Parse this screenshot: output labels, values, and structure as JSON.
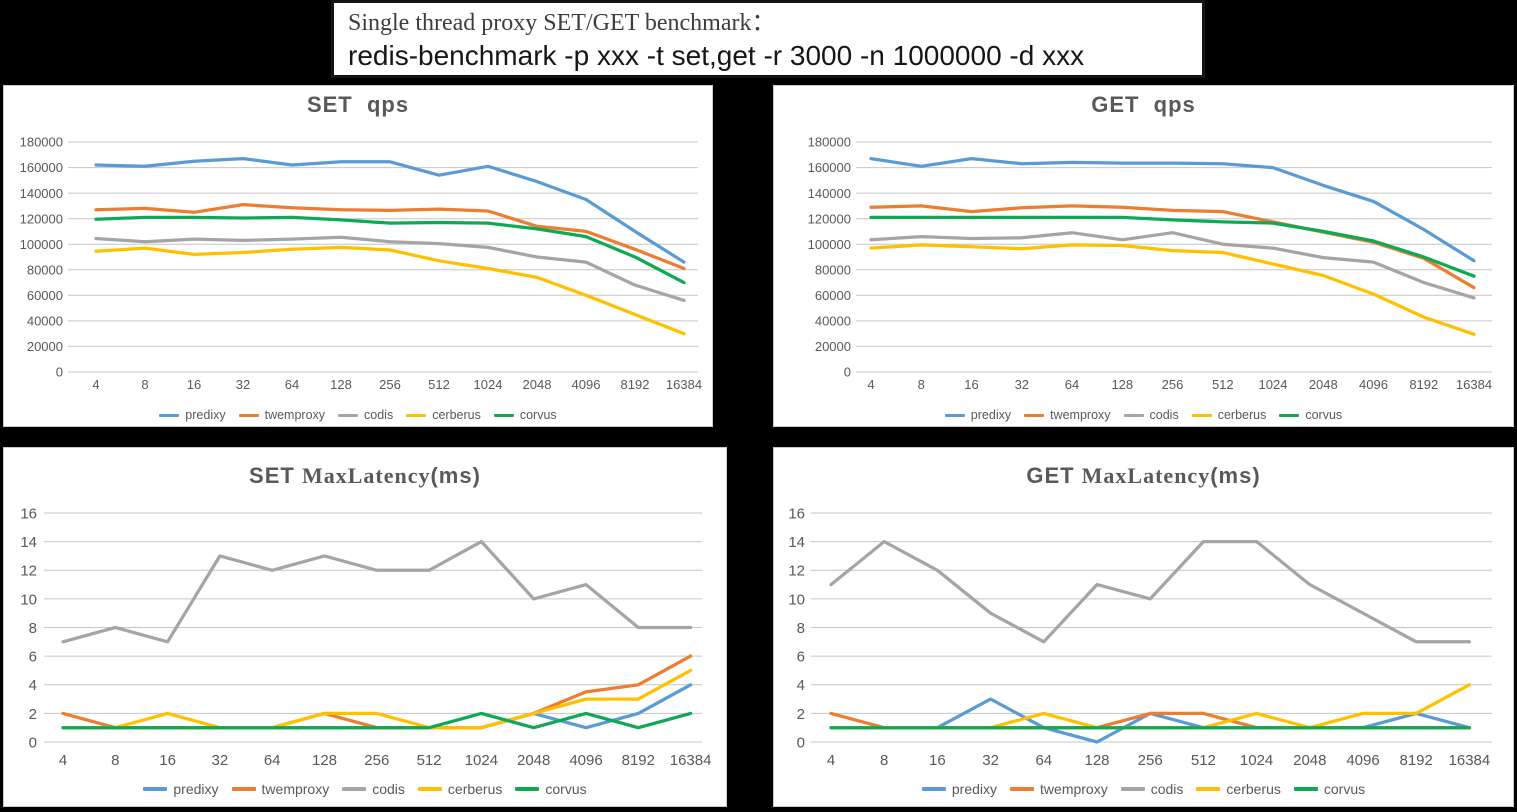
{
  "header": {
    "line1": "Single thread proxy SET/GET benchmark：",
    "line2": "redis-benchmark -p xxx -t set,get -r 3000 -n 1000000 -d xxx"
  },
  "legend": [
    "predixy",
    "twemproxy",
    "codis",
    "cerberus",
    "corvus"
  ],
  "colors": {
    "predixy": "#5B9BD5",
    "twemproxy": "#ED7D31",
    "codis": "#A5A5A5",
    "cerberus": "#FFC000",
    "corvus": "#0FA956",
    "grid": "#C6C6C6",
    "tick_text": "#595959",
    "title_text": "#595959",
    "panel_bg": "#FFFFFF",
    "page_bg": "#000000"
  },
  "chart_data": [
    {
      "id": "set-qps",
      "type": "line",
      "title": "SET  qps",
      "title_parts": [
        {
          "text": "SET  qps",
          "font": "sans"
        }
      ],
      "xlabel": "",
      "ylabel": "",
      "ylim": [
        0,
        180000
      ],
      "ytick_step": 20000,
      "grid": "horizontal",
      "legend_position": "bottom",
      "categories": [
        "4",
        "8",
        "16",
        "32",
        "64",
        "128",
        "256",
        "512",
        "1024",
        "2048",
        "4096",
        "8192",
        "16384"
      ],
      "series": [
        {
          "name": "predixy",
          "values": [
            162000,
            161000,
            165000,
            167000,
            162000,
            164500,
            164500,
            154000,
            161000,
            149000,
            135000,
            110000,
            86000
          ]
        },
        {
          "name": "twemproxy",
          "values": [
            127000,
            128000,
            125000,
            131000,
            128500,
            127000,
            126500,
            127500,
            126000,
            114000,
            110000,
            96000,
            81000
          ]
        },
        {
          "name": "codis",
          "values": [
            104500,
            102000,
            104000,
            103000,
            104000,
            105500,
            102000,
            100500,
            97500,
            90000,
            86000,
            68000,
            56000
          ]
        },
        {
          "name": "cerberus",
          "values": [
            94500,
            97000,
            92000,
            93500,
            96000,
            97500,
            95500,
            87000,
            81000,
            74000,
            60000,
            45000,
            30000
          ]
        },
        {
          "name": "corvus",
          "values": [
            119500,
            121000,
            121000,
            120500,
            121000,
            119000,
            116500,
            117000,
            116500,
            112000,
            106000,
            90000,
            70000
          ]
        }
      ]
    },
    {
      "id": "get-qps",
      "type": "line",
      "title": "GET  qps",
      "title_parts": [
        {
          "text": "GET  qps",
          "font": "sans"
        }
      ],
      "xlabel": "",
      "ylabel": "",
      "ylim": [
        0,
        180000
      ],
      "ytick_step": 20000,
      "grid": "horizontal",
      "legend_position": "bottom",
      "categories": [
        "4",
        "8",
        "16",
        "32",
        "64",
        "128",
        "256",
        "512",
        "1024",
        "2048",
        "4096",
        "8192",
        "16384"
      ],
      "series": [
        {
          "name": "predixy",
          "values": [
            167000,
            161000,
            167000,
            163000,
            164000,
            163500,
            163500,
            163000,
            160000,
            146000,
            133500,
            111500,
            87000
          ]
        },
        {
          "name": "twemproxy",
          "values": [
            129000,
            130000,
            125500,
            128500,
            130000,
            129000,
            126500,
            125500,
            117500,
            109500,
            101500,
            89000,
            66000
          ]
        },
        {
          "name": "codis",
          "values": [
            103500,
            106000,
            104500,
            105000,
            109000,
            103500,
            109000,
            100000,
            97000,
            89500,
            86000,
            70000,
            58000
          ]
        },
        {
          "name": "cerberus",
          "values": [
            97000,
            99500,
            98000,
            96500,
            99500,
            99000,
            95000,
            93500,
            84500,
            75500,
            61000,
            43000,
            29500
          ]
        },
        {
          "name": "corvus",
          "values": [
            121000,
            121000,
            121000,
            121000,
            121000,
            121000,
            119000,
            117500,
            116500,
            110000,
            102500,
            90000,
            75000
          ]
        }
      ]
    },
    {
      "id": "set-maxlatency",
      "type": "line",
      "title": "SET MaxLatency(ms)",
      "title_parts": [
        {
          "text": "SET ",
          "font": "sans"
        },
        {
          "text": "MaxLatency",
          "font": "serif"
        },
        {
          "text": "(ms)",
          "font": "sans"
        }
      ],
      "xlabel": "",
      "ylabel": "",
      "ylim": [
        0,
        16
      ],
      "ytick_step": 2,
      "grid": "horizontal",
      "legend_position": "bottom",
      "categories": [
        "4",
        "8",
        "16",
        "32",
        "64",
        "128",
        "256",
        "512",
        "1024",
        "2048",
        "4096",
        "8192",
        "16384"
      ],
      "series": [
        {
          "name": "predixy",
          "values": [
            1,
            1,
            1,
            1,
            1,
            1,
            1,
            1,
            1,
            2,
            1,
            2,
            4
          ]
        },
        {
          "name": "twemproxy",
          "values": [
            2,
            1,
            1,
            1,
            1,
            2,
            1,
            1,
            1,
            2,
            3.5,
            4,
            6
          ]
        },
        {
          "name": "codis",
          "values": [
            7,
            8,
            7,
            13,
            12,
            13,
            12,
            12,
            14,
            10,
            11,
            8,
            8
          ]
        },
        {
          "name": "cerberus",
          "values": [
            1,
            1,
            2,
            1,
            1,
            2,
            2,
            1,
            1,
            2,
            3,
            3,
            5
          ]
        },
        {
          "name": "corvus",
          "values": [
            1,
            1,
            1,
            1,
            1,
            1,
            1,
            1,
            2,
            1,
            2,
            1,
            2
          ]
        }
      ]
    },
    {
      "id": "get-maxlatency",
      "type": "line",
      "title": "GET MaxLatency(ms)",
      "title_parts": [
        {
          "text": "GET ",
          "font": "sans"
        },
        {
          "text": "MaxLatency",
          "font": "serif"
        },
        {
          "text": "(ms)",
          "font": "sans"
        }
      ],
      "xlabel": "",
      "ylabel": "",
      "ylim": [
        0,
        16
      ],
      "ytick_step": 2,
      "grid": "horizontal",
      "legend_position": "bottom",
      "categories": [
        "4",
        "8",
        "16",
        "32",
        "64",
        "128",
        "256",
        "512",
        "1024",
        "2048",
        "4096",
        "8192",
        "16384"
      ],
      "series": [
        {
          "name": "predixy",
          "values": [
            1,
            1,
            1,
            3,
            1,
            0,
            2,
            1,
            1,
            1,
            1,
            2,
            1
          ]
        },
        {
          "name": "twemproxy",
          "values": [
            2,
            1,
            1,
            1,
            1,
            1,
            2,
            2,
            1,
            1,
            1,
            1,
            1
          ]
        },
        {
          "name": "codis",
          "values": [
            11,
            14,
            12,
            9,
            7,
            11,
            10,
            14,
            14,
            11,
            9,
            7,
            7
          ]
        },
        {
          "name": "cerberus",
          "values": [
            1,
            1,
            1,
            1,
            2,
            1,
            1,
            1,
            2,
            1,
            2,
            2,
            4
          ]
        },
        {
          "name": "corvus",
          "values": [
            1,
            1,
            1,
            1,
            1,
            1,
            1,
            1,
            1,
            1,
            1,
            1,
            1
          ]
        }
      ]
    }
  ]
}
